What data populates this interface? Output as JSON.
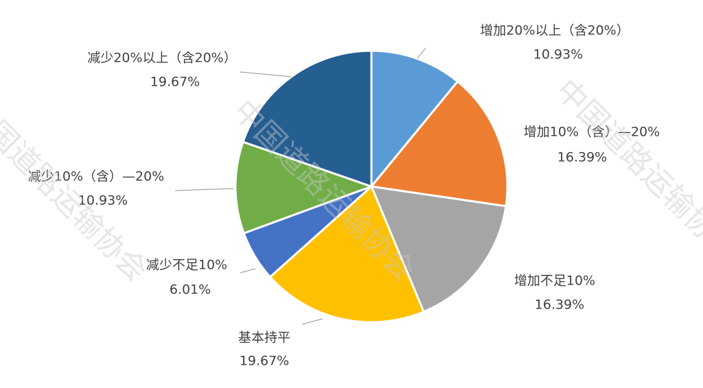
{
  "chart_data": {
    "type": "pie",
    "categories": [
      "增加20%以上（含20%）",
      "增加10%（含）—20%",
      "增加不足10%",
      "基本持平",
      "减少不足10%",
      "减少10%（含）—20%",
      "减少20%以上（含20%）"
    ],
    "values": [
      10.93,
      16.39,
      16.39,
      19.67,
      6.01,
      10.93,
      19.67
    ],
    "value_labels": [
      "10.93%",
      "16.39%",
      "16.39%",
      "19.67%",
      "6.01%",
      "10.93%",
      "19.67%"
    ],
    "colors": [
      "#5b9bd5",
      "#ed7d31",
      "#a5a5a5",
      "#ffc000",
      "#4472c4",
      "#70ad47",
      "#255e91"
    ]
  },
  "watermark": "中国道路运输协会"
}
